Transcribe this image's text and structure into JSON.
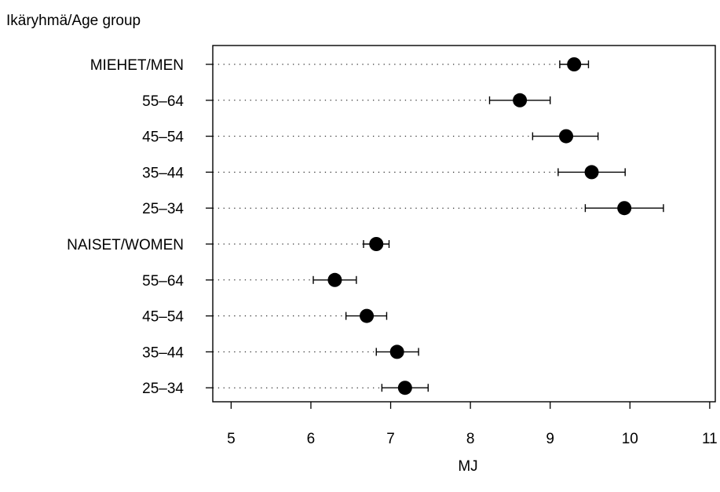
{
  "chart_data": {
    "type": "scatter",
    "ylabel": "Ikäryhmä/Age group",
    "xlabel": "MJ",
    "xlim": [
      4.77,
      11.07
    ],
    "x_ticks": [
      5,
      6,
      7,
      8,
      9,
      10,
      11
    ],
    "x_tick_labels": [
      "5",
      "6",
      "7",
      "8",
      "9",
      "10",
      "11"
    ],
    "grid": false,
    "legend": "none",
    "marker_color": "#000000",
    "categories": [
      "MIEHET/MEN",
      "55–64",
      "45–54",
      "35–44",
      "25–34",
      "NAISET/WOMEN",
      "55–64",
      "45–54",
      "35–44",
      "25–34"
    ],
    "series": [
      {
        "points": [
          {
            "category": "MIEHET/MEN",
            "value": 9.3,
            "ci_low": 9.12,
            "ci_high": 9.48
          },
          {
            "category": "55–64",
            "value": 8.62,
            "ci_low": 8.24,
            "ci_high": 9.0
          },
          {
            "category": "45–54",
            "value": 9.2,
            "ci_low": 8.78,
            "ci_high": 9.6
          },
          {
            "category": "35–44",
            "value": 9.52,
            "ci_low": 9.1,
            "ci_high": 9.94
          },
          {
            "category": "25–34",
            "value": 9.93,
            "ci_low": 9.44,
            "ci_high": 10.42
          },
          {
            "category": "NAISET/WOMEN",
            "value": 6.82,
            "ci_low": 6.66,
            "ci_high": 6.98
          },
          {
            "category": "55–64",
            "value": 6.3,
            "ci_low": 6.03,
            "ci_high": 6.57
          },
          {
            "category": "45–54",
            "value": 6.7,
            "ci_low": 6.44,
            "ci_high": 6.95
          },
          {
            "category": "35–44",
            "value": 7.08,
            "ci_low": 6.82,
            "ci_high": 7.35
          },
          {
            "category": "25–34",
            "value": 7.18,
            "ci_low": 6.89,
            "ci_high": 7.47
          }
        ]
      }
    ]
  }
}
